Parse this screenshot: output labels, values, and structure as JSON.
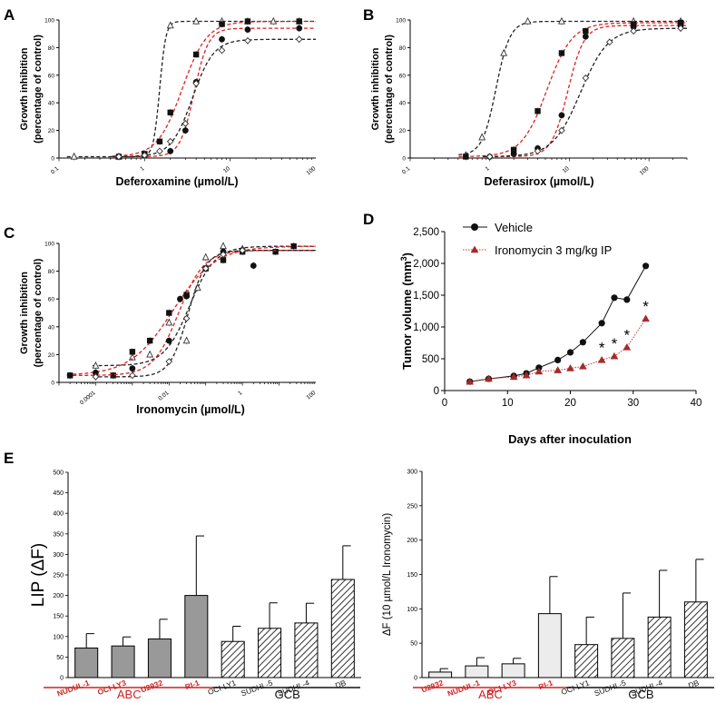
{
  "panels": {
    "A": {
      "letter": "A"
    },
    "B": {
      "letter": "B"
    },
    "C": {
      "letter": "C"
    },
    "D": {
      "letter": "D"
    },
    "E": {
      "letter": "E"
    }
  },
  "chart_data": [
    {
      "id": "A",
      "type": "line",
      "x_scale": "log",
      "title": "",
      "xlabel": "Deferoxamine (µmol/L)",
      "ylabel": "Growth inhibition (percentage of control)",
      "ylabel_lines": [
        "Growth inhibition",
        "(percentage of control)"
      ],
      "xlim": [
        0.1,
        100
      ],
      "ylim": [
        0,
        100
      ],
      "x_ticks": [
        "0.1",
        "1",
        "10",
        "100"
      ],
      "y_ticks": [
        "0",
        "20",
        "40",
        "60",
        "80",
        "100"
      ],
      "series": [
        {
          "name": "open triangles",
          "marker": "triangle-open",
          "color": "#222222",
          "x": [
            0.15,
            0.5,
            1.0,
            2.0,
            4.0,
            8.0,
            16,
            32,
            64
          ],
          "y": [
            1,
            1,
            2,
            96,
            99,
            99,
            99,
            99,
            99
          ]
        },
        {
          "name": "squares",
          "marker": "square",
          "color": "#dd2222",
          "x": [
            0.5,
            1.0,
            1.5,
            2.0,
            4.0,
            8.0,
            16,
            64
          ],
          "y": [
            1,
            3,
            12,
            33,
            75,
            97,
            99,
            99
          ]
        },
        {
          "name": "filled circles",
          "marker": "circle",
          "color": "#dd2222",
          "x": [
            0.5,
            1.0,
            2.0,
            3.0,
            4.0,
            8.0,
            16,
            64
          ],
          "y": [
            1,
            2,
            5,
            20,
            55,
            86,
            93,
            94
          ]
        },
        {
          "name": "open diamonds",
          "marker": "diamond-open",
          "color": "#222222",
          "x": [
            0.5,
            1.0,
            1.5,
            2.0,
            3.0,
            4.0,
            8.0,
            16,
            64
          ],
          "y": [
            1,
            2,
            5,
            12,
            25,
            54,
            78,
            85,
            86
          ]
        }
      ]
    },
    {
      "id": "B",
      "type": "line",
      "x_scale": "log",
      "title": "",
      "xlabel": "Deferasirox (µmol/L)",
      "ylabel": "Growth inhibition (percentage of control)",
      "ylabel_lines": [
        "Growth inhibition",
        "(percentage of control)"
      ],
      "xlim": [
        0.1,
        300
      ],
      "ylim": [
        0,
        100
      ],
      "x_ticks": [
        "0.1",
        "1",
        "10",
        "100"
      ],
      "y_ticks": [
        "0",
        "20",
        "40",
        "60",
        "80",
        "100"
      ],
      "series": [
        {
          "name": "open triangles",
          "marker": "triangle-open",
          "color": "#222222",
          "x": [
            0.5,
            0.8,
            1.5,
            3.0,
            8.0,
            64,
            250
          ],
          "y": [
            2,
            15,
            76,
            99,
            99,
            99,
            99
          ]
        },
        {
          "name": "squares",
          "marker": "square",
          "color": "#dd2222",
          "x": [
            0.5,
            2.0,
            4.0,
            8.0,
            16,
            64,
            250
          ],
          "y": [
            1,
            6,
            34,
            76,
            92,
            97,
            98
          ]
        },
        {
          "name": "filled circles",
          "marker": "circle",
          "color": "#dd2222",
          "x": [
            1.0,
            2.0,
            4.0,
            8.0,
            16,
            64,
            250
          ],
          "y": [
            1,
            3,
            7,
            31,
            88,
            95,
            96
          ]
        },
        {
          "name": "open diamonds",
          "marker": "diamond-open",
          "color": "#222222",
          "x": [
            1.0,
            4.0,
            8.0,
            16,
            32,
            64,
            250
          ],
          "y": [
            1,
            5,
            20,
            58,
            84,
            92,
            94
          ]
        }
      ]
    },
    {
      "id": "C",
      "type": "line",
      "x_scale": "log",
      "title": "",
      "xlabel": "Ironomycin (µmol/L)",
      "ylabel": "Growth inhibition (percentage of control)",
      "ylabel_lines": [
        "Growth inhibition",
        "(percentage of control)"
      ],
      "xlim": [
        1e-05,
        100
      ],
      "ylim": [
        0,
        100
      ],
      "x_ticks": [
        "0.0001",
        "0.01",
        "1",
        "100"
      ],
      "y_ticks": [
        "0",
        "20",
        "40",
        "60",
        "80",
        "100"
      ],
      "series": [
        {
          "name": "open triangles",
          "marker": "triangle-open",
          "color": "#222222",
          "x": [
            0.0001,
            0.001,
            0.003,
            0.01,
            0.03,
            0.06,
            0.1,
            0.3,
            1.0
          ],
          "y": [
            12,
            18,
            20,
            43,
            30,
            68,
            90,
            98,
            96
          ]
        },
        {
          "name": "squares",
          "marker": "square",
          "color": "#dd2222",
          "x": [
            2e-05,
            0.0003,
            0.001,
            0.003,
            0.01,
            0.03,
            0.1,
            0.3,
            1.0,
            8,
            25
          ],
          "y": [
            5,
            5,
            22,
            30,
            50,
            63,
            82,
            88,
            94,
            94,
            98
          ]
        },
        {
          "name": "filled circles",
          "marker": "circle",
          "color": "#dd2222",
          "x": [
            2e-05,
            0.0001,
            0.001,
            0.01,
            0.02,
            0.03,
            0.1,
            0.3,
            1.0,
            2.0
          ],
          "y": [
            5,
            7,
            10,
            30,
            60,
            62,
            82,
            94,
            95,
            84
          ]
        },
        {
          "name": "open diamonds",
          "marker": "diamond-open",
          "color": "#222222",
          "x": [
            0.0001,
            0.001,
            0.01,
            0.03,
            0.1,
            0.3,
            1.0
          ],
          "y": [
            4,
            5,
            15,
            46,
            82,
            92,
            95
          ]
        }
      ]
    },
    {
      "id": "D",
      "type": "line",
      "title": "",
      "xlabel": "Days after inoculation",
      "ylabel": "Tumor volume (mm3)",
      "ylabel_main": "Tumor volume (mm",
      "ylabel_sup": "3",
      "ylabel_close": ")",
      "xlim": [
        0,
        40
      ],
      "ylim": [
        0,
        2500
      ],
      "x_ticks": [
        "0",
        "10",
        "20",
        "30",
        "40"
      ],
      "y_ticks": [
        "0",
        "500",
        "1,000",
        "1,500",
        "2,000",
        "2,500"
      ],
      "legend": [
        "Vehicle",
        "Ironomycin 3 mg/kg IP"
      ],
      "series": [
        {
          "name": "Vehicle",
          "marker": "circle",
          "color": "#111111",
          "x": [
            4,
            7,
            11,
            13,
            15,
            18,
            20,
            22,
            25,
            27,
            29,
            32
          ],
          "y": [
            140,
            185,
            230,
            270,
            360,
            480,
            600,
            760,
            1060,
            1460,
            1430,
            1960
          ]
        },
        {
          "name": "Ironomycin 3 mg/kg IP",
          "marker": "triangle",
          "color": "#a52a2a",
          "x": [
            4,
            7,
            11,
            13,
            15,
            18,
            20,
            22,
            25,
            27,
            29,
            32
          ],
          "y": [
            140,
            185,
            215,
            240,
            300,
            320,
            350,
            380,
            480,
            540,
            680,
            1130
          ]
        }
      ],
      "annotations": [
        {
          "text": "*",
          "x": 25,
          "y": 480
        },
        {
          "text": "*",
          "x": 27,
          "y": 540
        },
        {
          "text": "*",
          "x": 29,
          "y": 680
        },
        {
          "text": "*",
          "x": 32,
          "y": 1130
        }
      ]
    },
    {
      "id": "E-left",
      "type": "bar",
      "title": "",
      "ylabel": "LIP (ΔF)",
      "ylim": [
        0,
        500
      ],
      "y_ticks": [
        "0",
        "50",
        "100",
        "150",
        "200",
        "250",
        "300",
        "350",
        "400",
        "450",
        "500"
      ],
      "categories": [
        "NUDUL-1",
        "OCI-LY3",
        "U2932",
        "RI-1",
        "OCI-LY1",
        "SUDHL-5",
        "SUDHL-4",
        "DB"
      ],
      "category_colors": [
        "#cc2222",
        "#cc2222",
        "#cc2222",
        "#cc2222",
        "#111111",
        "#111111",
        "#111111",
        "#111111"
      ],
      "values": [
        72,
        77,
        94,
        200,
        88,
        120,
        133,
        239
      ],
      "errors": [
        35,
        22,
        48,
        145,
        37,
        62,
        48,
        82
      ],
      "fills": [
        "solid",
        "solid",
        "solid",
        "solid",
        "hatch",
        "hatch",
        "hatch",
        "hatch"
      ],
      "groups": [
        {
          "label": "ABC",
          "color": "#cc2222"
        },
        {
          "label": "GCB",
          "color": "#111111"
        }
      ]
    },
    {
      "id": "E-right",
      "type": "bar",
      "title": "",
      "ylabel": "ΔF (10 µmol/L Ironomycin)",
      "ylim": [
        0,
        300
      ],
      "y_ticks": [
        "0",
        "50",
        "100",
        "150",
        "200",
        "250",
        "300"
      ],
      "categories": [
        "U2932",
        "NUDUL-1",
        "OCI-LY3",
        "RI-1",
        "OCI-LY1",
        "SUDHL-5",
        "SUDHL-4",
        "DB"
      ],
      "category_colors": [
        "#cc2222",
        "#cc2222",
        "#cc2222",
        "#cc2222",
        "#111111",
        "#111111",
        "#111111",
        "#111111"
      ],
      "values": [
        8,
        17,
        20,
        93,
        48,
        57,
        88,
        110
      ],
      "errors": [
        5,
        12,
        8,
        54,
        40,
        66,
        68,
        62
      ],
      "fills": [
        "light",
        "light",
        "light",
        "light",
        "hatch",
        "hatch",
        "hatch",
        "hatch"
      ],
      "groups": [
        {
          "label": "ABC",
          "color": "#cc2222"
        },
        {
          "label": "GCB",
          "color": "#111111"
        }
      ]
    }
  ]
}
